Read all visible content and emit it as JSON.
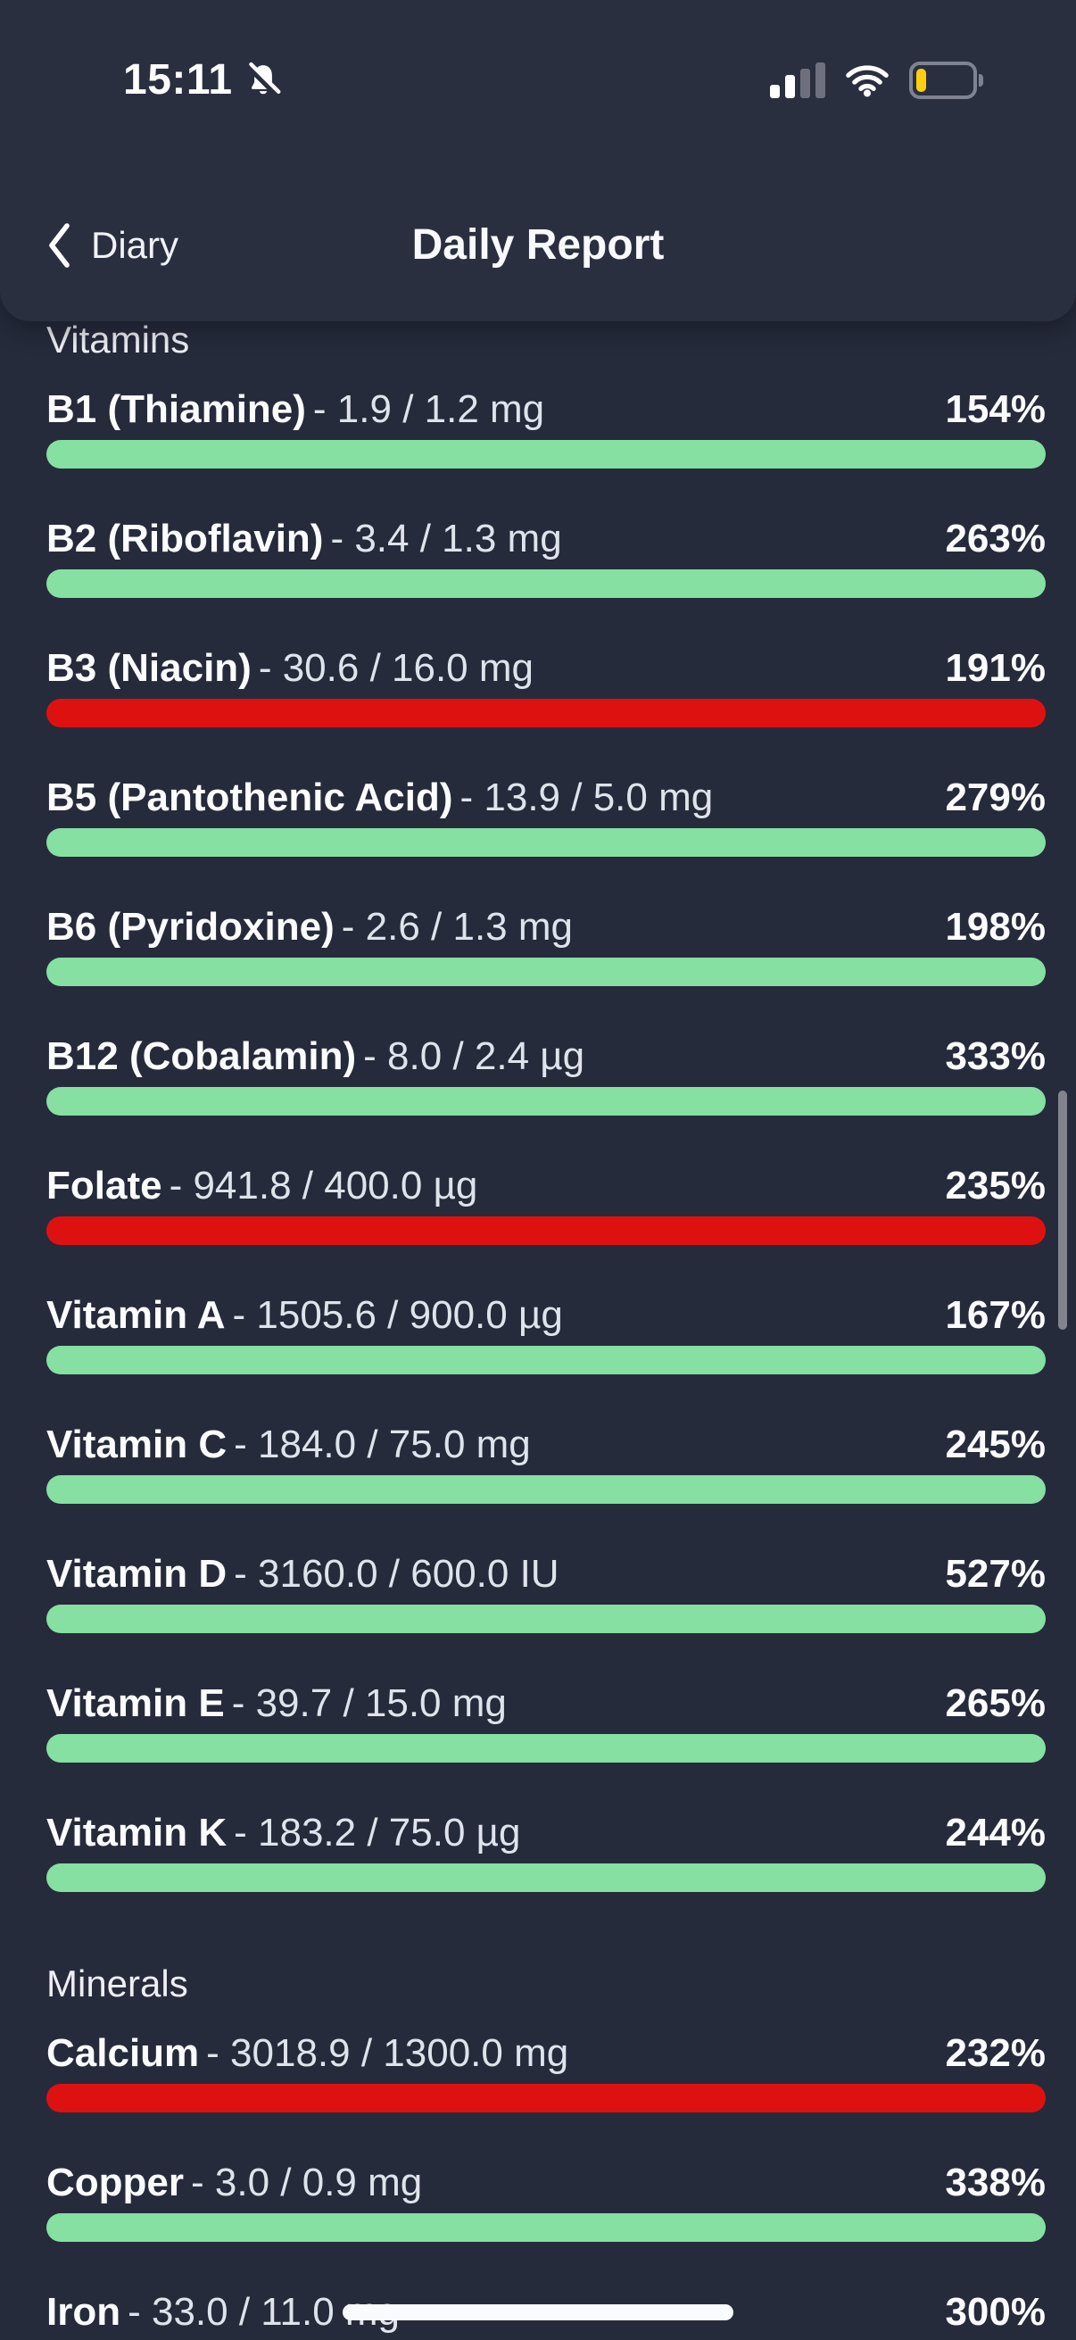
{
  "status_bar": {
    "time": "15:11",
    "left_icon": "notifications-off-icon",
    "right_icons": [
      "cellular-signal-icon",
      "wifi-icon",
      "battery-icon"
    ],
    "signal_bars_active": 2,
    "signal_bars_total": 4,
    "battery_fill_color": "#FFCE0D"
  },
  "nav": {
    "back_label": "Diary",
    "title": "Daily Report"
  },
  "sections": [
    {
      "title": "Vitamins",
      "rows": [
        {
          "name": "B1 (Thiamine)",
          "detail": "- 1.9 / 1.2 mg",
          "percent": "154%",
          "status": "ok",
          "fill": 100
        },
        {
          "name": "B2 (Riboflavin)",
          "detail": "- 3.4 / 1.3 mg",
          "percent": "263%",
          "status": "ok",
          "fill": 100
        },
        {
          "name": "B3 (Niacin)",
          "detail": "- 30.6 / 16.0 mg",
          "percent": "191%",
          "status": "over",
          "fill": 100
        },
        {
          "name": "B5 (Pantothenic Acid)",
          "detail": "- 13.9 / 5.0 mg",
          "percent": "279%",
          "status": "ok",
          "fill": 100
        },
        {
          "name": "B6 (Pyridoxine)",
          "detail": "- 2.6 / 1.3 mg",
          "percent": "198%",
          "status": "ok",
          "fill": 100
        },
        {
          "name": "B12 (Cobalamin)",
          "detail": "- 8.0 / 2.4 µg",
          "percent": "333%",
          "status": "ok",
          "fill": 100
        },
        {
          "name": "Folate",
          "detail": "- 941.8 / 400.0 µg",
          "percent": "235%",
          "status": "over",
          "fill": 100
        },
        {
          "name": "Vitamin A",
          "detail": "- 1505.6 / 900.0 µg",
          "percent": "167%",
          "status": "ok",
          "fill": 100
        },
        {
          "name": "Vitamin C",
          "detail": "- 184.0 / 75.0 mg",
          "percent": "245%",
          "status": "ok",
          "fill": 100
        },
        {
          "name": "Vitamin D",
          "detail": "- 3160.0 / 600.0 IU",
          "percent": "527%",
          "status": "ok",
          "fill": 100
        },
        {
          "name": "Vitamin E",
          "detail": "- 39.7 / 15.0 mg",
          "percent": "265%",
          "status": "ok",
          "fill": 100
        },
        {
          "name": "Vitamin K",
          "detail": "- 183.2 / 75.0 µg",
          "percent": "244%",
          "status": "ok",
          "fill": 100
        }
      ]
    },
    {
      "title": "Minerals",
      "rows": [
        {
          "name": "Calcium",
          "detail": "- 3018.9 / 1300.0 mg",
          "percent": "232%",
          "status": "over",
          "fill": 100
        },
        {
          "name": "Copper",
          "detail": "- 3.0 / 0.9 mg",
          "percent": "338%",
          "status": "ok",
          "fill": 100
        },
        {
          "name": "Iron",
          "detail": "- 33.0 / 11.0 mg",
          "percent": "300%",
          "status": "ok",
          "fill": 100
        }
      ]
    }
  ],
  "colors": {
    "ok": "#85E0A2",
    "over": "#DE1111",
    "page_bg": "#262B3B",
    "header_bg": "#2A2F40"
  }
}
